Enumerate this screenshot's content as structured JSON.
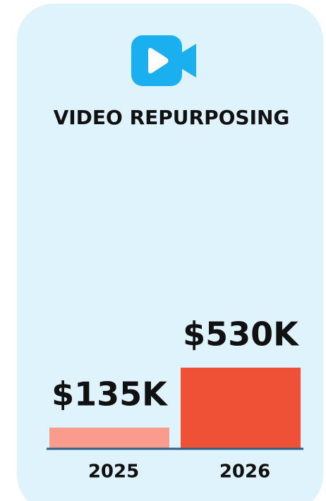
{
  "chart_data": {
    "type": "bar",
    "title": "VIDEO REPURPOSING",
    "categories": [
      "2025",
      "2026"
    ],
    "values": [
      135,
      530
    ],
    "value_labels": [
      "$135K",
      "$530K"
    ],
    "colors": [
      "#f99b8d",
      "#ef5137"
    ]
  }
}
